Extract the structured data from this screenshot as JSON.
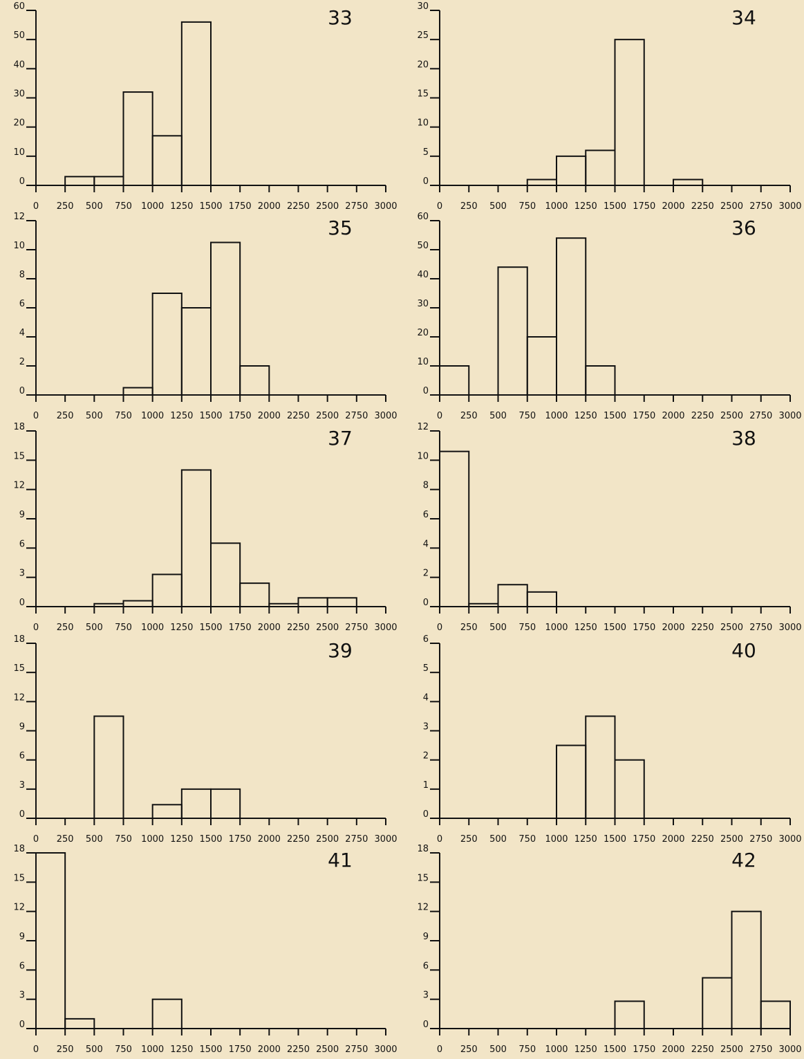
{
  "chart_data": [
    {
      "type": "bar",
      "panel": "33",
      "x_ticks": [
        0,
        250,
        500,
        750,
        1000,
        1250,
        1500,
        1750,
        2000,
        2250,
        2500,
        2750,
        3000
      ],
      "y_ticks": [
        0,
        10,
        20,
        30,
        40,
        50,
        60
      ],
      "ylim": [
        0,
        60
      ],
      "xlim": [
        0,
        3000
      ],
      "bin_edges": [
        0,
        250,
        500,
        750,
        1000,
        1250,
        1500,
        1750,
        2000,
        2250,
        2500,
        2750,
        3000
      ],
      "values": [
        0,
        3,
        3,
        32,
        17,
        56,
        0,
        0,
        0,
        0,
        0,
        0
      ]
    },
    {
      "type": "bar",
      "panel": "34",
      "x_ticks": [
        0,
        250,
        500,
        750,
        1000,
        1250,
        1500,
        1750,
        2000,
        2250,
        2500,
        2750,
        3000
      ],
      "y_ticks": [
        0,
        5,
        10,
        15,
        20,
        25,
        30
      ],
      "ylim": [
        0,
        30
      ],
      "xlim": [
        0,
        3000
      ],
      "bin_edges": [
        0,
        250,
        500,
        750,
        1000,
        1250,
        1500,
        1750,
        2000,
        2250,
        2500,
        2750,
        3000
      ],
      "values": [
        0,
        0,
        0,
        1,
        5,
        6,
        25,
        0,
        1,
        0,
        0,
        0
      ]
    },
    {
      "type": "bar",
      "panel": "35",
      "x_ticks": [
        0,
        250,
        500,
        750,
        1000,
        1250,
        1500,
        1750,
        2000,
        2250,
        2500,
        2750,
        3000
      ],
      "y_ticks": [
        0,
        2,
        4,
        6,
        8,
        10,
        12
      ],
      "ylim": [
        0,
        12
      ],
      "xlim": [
        0,
        3000
      ],
      "bin_edges": [
        0,
        250,
        500,
        750,
        1000,
        1250,
        1500,
        1750,
        2000,
        2250,
        2500,
        2750,
        3000
      ],
      "values": [
        0,
        0,
        0,
        0.5,
        7,
        6,
        10.5,
        2,
        0,
        0,
        0,
        0
      ]
    },
    {
      "type": "bar",
      "panel": "36",
      "x_ticks": [
        0,
        250,
        500,
        750,
        1000,
        1250,
        1500,
        1750,
        2000,
        2250,
        2500,
        2750,
        3000
      ],
      "y_ticks": [
        0,
        10,
        20,
        30,
        40,
        50,
        60
      ],
      "ylim": [
        0,
        60
      ],
      "xlim": [
        0,
        3000
      ],
      "bin_edges": [
        0,
        250,
        500,
        750,
        1000,
        1250,
        1500,
        1750,
        2000,
        2250,
        2500,
        2750,
        3000
      ],
      "values": [
        10,
        0,
        44,
        20,
        54,
        10,
        0,
        0,
        0,
        0,
        0,
        0
      ]
    },
    {
      "type": "bar",
      "panel": "37",
      "x_ticks": [
        0,
        250,
        500,
        750,
        1000,
        1250,
        1500,
        1750,
        2000,
        2250,
        2500,
        2750,
        3000
      ],
      "y_ticks": [
        0,
        3,
        6,
        9,
        12,
        15,
        18
      ],
      "ylim": [
        0,
        18
      ],
      "xlim": [
        0,
        3000
      ],
      "bin_edges": [
        0,
        250,
        500,
        750,
        1000,
        1250,
        1500,
        1750,
        2000,
        2250,
        2500,
        2750,
        3000
      ],
      "values": [
        0,
        0,
        0.3,
        0.6,
        3.3,
        14,
        6.5,
        2.4,
        0.3,
        0.9,
        0.9,
        0
      ]
    },
    {
      "type": "bar",
      "panel": "38",
      "x_ticks": [
        0,
        250,
        500,
        750,
        1000,
        1250,
        1500,
        1750,
        2000,
        2250,
        2500,
        2750,
        3000
      ],
      "y_ticks": [
        0,
        2,
        4,
        6,
        8,
        10,
        12
      ],
      "ylim": [
        0,
        12
      ],
      "xlim": [
        0,
        3000
      ],
      "bin_edges": [
        0,
        250,
        500,
        750,
        1000,
        1250,
        1500,
        1750,
        2000,
        2250,
        2500,
        2750,
        3000
      ],
      "values": [
        10.6,
        0.2,
        1.5,
        1,
        0,
        0,
        0,
        0,
        0,
        0,
        0,
        0
      ]
    },
    {
      "type": "bar",
      "panel": "39",
      "x_ticks": [
        0,
        250,
        500,
        750,
        1000,
        1250,
        1500,
        1750,
        2000,
        2250,
        2500,
        2750,
        3000
      ],
      "y_ticks": [
        0,
        3,
        6,
        9,
        12,
        15,
        18
      ],
      "ylim": [
        0,
        18
      ],
      "xlim": [
        0,
        3000
      ],
      "bin_edges": [
        0,
        250,
        500,
        750,
        1000,
        1250,
        1500,
        1750,
        2000,
        2250,
        2500,
        2750,
        3000
      ],
      "values": [
        0,
        0,
        10.5,
        0,
        1.4,
        3,
        3,
        0,
        0,
        0,
        0,
        0
      ]
    },
    {
      "type": "bar",
      "panel": "40",
      "x_ticks": [
        0,
        250,
        500,
        750,
        1000,
        1250,
        1500,
        1750,
        2000,
        2250,
        2500,
        2750,
        3000
      ],
      "y_ticks": [
        0,
        1,
        2,
        3,
        4,
        5,
        6
      ],
      "ylim": [
        0,
        6
      ],
      "xlim": [
        0,
        3000
      ],
      "bin_edges": [
        0,
        250,
        500,
        750,
        1000,
        1250,
        1500,
        1750,
        2000,
        2250,
        2500,
        2750,
        3000
      ],
      "values": [
        0,
        0,
        0,
        0,
        2.5,
        3.5,
        2,
        0,
        0,
        0,
        0,
        0
      ]
    },
    {
      "type": "bar",
      "panel": "41",
      "x_ticks": [
        0,
        250,
        500,
        750,
        1000,
        1250,
        1500,
        1750,
        2000,
        2250,
        2500,
        2750,
        3000
      ],
      "y_ticks": [
        0,
        3,
        6,
        9,
        12,
        15,
        18
      ],
      "ylim": [
        0,
        18
      ],
      "xlim": [
        0,
        3000
      ],
      "bin_edges": [
        0,
        250,
        500,
        750,
        1000,
        1250,
        1500,
        1750,
        2000,
        2250,
        2500,
        2750,
        3000
      ],
      "values": [
        18,
        1,
        0,
        0,
        3,
        0,
        0,
        0,
        0,
        0,
        0,
        0
      ]
    },
    {
      "type": "bar",
      "panel": "42",
      "x_ticks": [
        0,
        250,
        500,
        750,
        1000,
        1250,
        1500,
        1750,
        2000,
        2250,
        2500,
        2750,
        3000
      ],
      "y_ticks": [
        0,
        3,
        6,
        9,
        12,
        15,
        18
      ],
      "ylim": [
        0,
        18
      ],
      "xlim": [
        0,
        3000
      ],
      "bin_edges": [
        0,
        250,
        500,
        750,
        1000,
        1250,
        1500,
        1750,
        2000,
        2250,
        2500,
        2750,
        3000
      ],
      "values": [
        0,
        0,
        0,
        0,
        0,
        0,
        2.8,
        0,
        0,
        5.2,
        12,
        2.8
      ]
    }
  ],
  "colors": {
    "background": "#f2e5c7",
    "ink": "#111111"
  }
}
